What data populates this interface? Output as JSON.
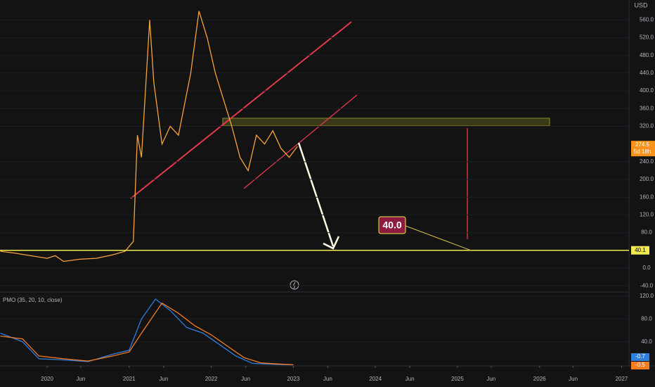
{
  "chart_data": [
    {
      "type": "line",
      "currency": "USD",
      "xlim": [
        2019.426,
        2027.09
      ],
      "ylim": [
        -54,
        605
      ],
      "yticks": [
        {
          "value": 560,
          "label": "560.0"
        },
        {
          "value": 520,
          "label": "520.0"
        },
        {
          "value": 480,
          "label": "480.0"
        },
        {
          "value": 440,
          "label": "440.0"
        },
        {
          "value": 400,
          "label": "400.0"
        },
        {
          "value": 360,
          "label": "360.0"
        },
        {
          "value": 320,
          "label": "320.0"
        },
        {
          "value": 240,
          "label": "240.0"
        },
        {
          "value": 200,
          "label": "200.0"
        },
        {
          "value": 160,
          "label": "160.0"
        },
        {
          "value": 120,
          "label": "120.0"
        },
        {
          "value": 80,
          "label": "80.0"
        },
        {
          "value": 0,
          "label": "0.0"
        },
        {
          "value": -40,
          "label": "-40.0"
        }
      ],
      "x": [
        2019.43,
        2019.6,
        2019.8,
        2020.0,
        2020.1,
        2020.2,
        2020.4,
        2020.6,
        2020.8,
        2020.95,
        2021.05,
        2021.1,
        2021.15,
        2021.25,
        2021.3,
        2021.4,
        2021.5,
        2021.6,
        2021.75,
        2021.85,
        2021.95,
        2022.05,
        2022.15,
        2022.25,
        2022.35,
        2022.45,
        2022.55,
        2022.65,
        2022.75,
        2022.85,
        2022.95,
        2023.05
      ],
      "series": [
        {
          "color": "#f7a23b",
          "values": [
            38,
            34,
            28,
            22,
            28,
            15,
            20,
            22,
            30,
            38,
            60,
            300,
            250,
            560,
            420,
            280,
            320,
            300,
            440,
            580,
            520,
            440,
            380,
            320,
            250,
            220,
            300,
            280,
            310,
            270,
            250,
            274.5
          ]
        }
      ],
      "last_price": 274.5,
      "countdown": "5d 18h",
      "target_line": 40.1,
      "annotation": {
        "value": 40,
        "label": "40.0"
      }
    },
    {
      "type": "line",
      "title": "PMO (35, 20, 10, close)",
      "xlim": [
        2019.426,
        2027.09
      ],
      "ylim": [
        -2.5,
        127.4
      ],
      "yticks": [
        {
          "value": 120,
          "label": "120.0"
        },
        {
          "value": 80,
          "label": "80.0"
        },
        {
          "value": 40,
          "label": "40.0"
        }
      ],
      "xticks": [
        {
          "value": 2020.0,
          "label": "2020"
        },
        {
          "value": 2020.41,
          "label": "Jun"
        },
        {
          "value": 2021.0,
          "label": "2021"
        },
        {
          "value": 2021.42,
          "label": "Jun"
        },
        {
          "value": 2022.0,
          "label": "2022"
        },
        {
          "value": 2022.42,
          "label": "Jun"
        },
        {
          "value": 2023.0,
          "label": "2023"
        },
        {
          "value": 2023.42,
          "label": "Jun"
        },
        {
          "value": 2024.0,
          "label": "2024"
        },
        {
          "value": 2024.42,
          "label": "Jun"
        },
        {
          "value": 2025.0,
          "label": "2025"
        },
        {
          "value": 2025.41,
          "label": "Jun"
        },
        {
          "value": 2026.0,
          "label": "2026"
        },
        {
          "value": 2026.41,
          "label": "Jun"
        },
        {
          "value": 2027.0,
          "label": "2027"
        }
      ],
      "series": [
        {
          "color": "#2f7fe0",
          "x": [
            2019.43,
            2019.7,
            2019.9,
            2020.2,
            2020.5,
            2020.8,
            2021.0,
            2021.15,
            2021.32,
            2021.5,
            2021.7,
            2021.9,
            2022.1,
            2022.3,
            2022.5,
            2022.8,
            2023.0
          ],
          "values": [
            55,
            40,
            10,
            8,
            5,
            18,
            25,
            80,
            115,
            95,
            65,
            55,
            35,
            15,
            2,
            0,
            -0.7
          ]
        },
        {
          "color": "#f57c1f",
          "x": [
            2019.43,
            2019.7,
            2019.9,
            2020.2,
            2020.5,
            2020.8,
            2021.0,
            2021.15,
            2021.4,
            2021.6,
            2021.8,
            2022.0,
            2022.2,
            2022.4,
            2022.6,
            2022.8,
            2023.0
          ],
          "values": [
            50,
            45,
            15,
            10,
            6,
            15,
            22,
            55,
            108,
            90,
            68,
            52,
            32,
            12,
            3,
            1,
            -0.5
          ]
        }
      ]
    }
  ]
}
